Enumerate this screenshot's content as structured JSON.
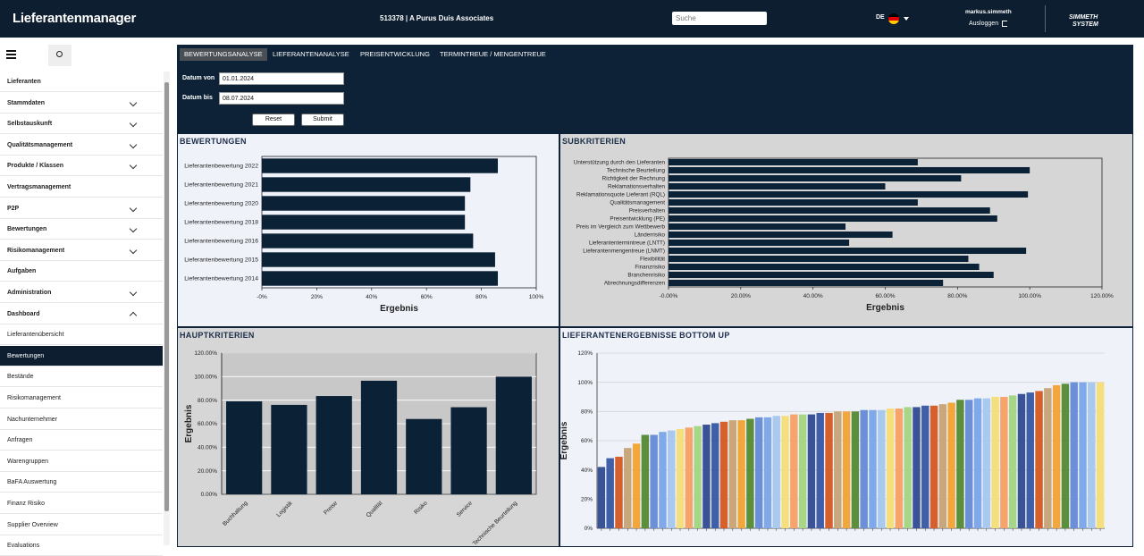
{
  "header": {
    "app_title": "Lieferantenmanager",
    "company": "513378 | A Purus Duis Associates",
    "search_placeholder": "Suche",
    "language": "DE",
    "user": "markus.simmeth",
    "logout": "Ausloggen",
    "logo_line1": "SIMMETH",
    "logo_line2": "SYSTEM"
  },
  "sidebar": {
    "items": [
      {
        "label": "Lieferanten"
      },
      {
        "label": "Stammdaten",
        "chevron": "down"
      },
      {
        "label": "Selbstauskunft",
        "chevron": "down"
      },
      {
        "label": "Qualitätsmanagement",
        "chevron": "down"
      },
      {
        "label": "Produkte / Klassen",
        "chevron": "down"
      },
      {
        "label": "Vertragsmanagement"
      },
      {
        "label": "P2P",
        "chevron": "down"
      },
      {
        "label": "Bewertungen",
        "chevron": "down"
      },
      {
        "label": "Risikomanagement",
        "chevron": "down"
      },
      {
        "label": "Aufgaben"
      },
      {
        "label": "Administration",
        "chevron": "down"
      },
      {
        "label": "Dashboard",
        "chevron": "up"
      }
    ],
    "subitems": [
      "Lieferantenübersicht",
      "Bewertungen",
      "Bestände",
      "Risikomanagement",
      "Nachunternehmer",
      "Anfragen",
      "Warengruppen",
      "BaFA Auswertung",
      "Finanz Risiko",
      "Supplier Overview",
      "Evaluations"
    ],
    "active_subitem": 1
  },
  "tabs": {
    "items": [
      "BEWERTUNGSANALYSE",
      "LIEFERANTENANALYSE",
      "PREISENTWICKLUNG",
      "TERMINTREUE / MENGENTREUE"
    ],
    "active": 0
  },
  "filters": {
    "from_label": "Datum von",
    "from_value": "01.01.2024",
    "to_label": "Datum bis",
    "to_value": "08.07.2024",
    "reset": "Reset",
    "submit": "Submit"
  },
  "chart_data": [
    {
      "type": "barh",
      "title": "BEWERTUNGEN",
      "categories": [
        "Lieferantenbewertung 2022",
        "Lieferantenbewertung 2021",
        "Lieferantenbewertung 2020",
        "Lieferantenbewertung 2018",
        "Lieferantenbewertung 2016",
        "Lieferantenbewertung 2015",
        "Lieferantenbewertung 2014"
      ],
      "values": [
        86,
        76,
        74,
        74,
        77,
        85,
        86
      ],
      "color": "#0b2135",
      "xlim": [
        0,
        100
      ],
      "xticks": [
        {
          "value": 0,
          "label": "-0%"
        },
        {
          "value": 20,
          "label": "20%"
        },
        {
          "value": 40,
          "label": "40%"
        },
        {
          "value": 60,
          "label": "60%"
        },
        {
          "value": 80,
          "label": "80%"
        },
        {
          "value": 100,
          "label": "100%"
        }
      ],
      "xlabel": "Ergebnis",
      "grid": false
    },
    {
      "type": "barh",
      "title": "SUBKRITERIEN",
      "categories": [
        "Unterstützung durch den Lieferanten",
        "Technische Beurteilung",
        "Richtigkeit der Rechnung",
        "Reklamationsverhalten",
        "Reklamationsquote Lieferant (RQL)",
        "Qualitätsmanagement",
        "Preisverhalten",
        "Preisentwicklung (PE)",
        "Preis im Vergleich zum Wettbewerb",
        "Länderrisiko",
        "Lieferantentermintreue (LNTT)",
        "Lieferantenmengentreue (LNMT)",
        "Flexibilität",
        "Finanzrisiko",
        "Branchenrisiko",
        "Abrechnungsdifferenzen"
      ],
      "values": [
        69,
        100,
        81,
        60,
        99.5,
        69,
        89,
        91,
        49,
        62,
        50,
        99,
        83,
        86,
        90,
        76
      ],
      "color": "#0b2135",
      "xlim": [
        0,
        120
      ],
      "xticks": [
        {
          "value": 0,
          "label": "-0.00%"
        },
        {
          "value": 20,
          "label": "20.00%"
        },
        {
          "value": 40,
          "label": "40.00%"
        },
        {
          "value": 60,
          "label": "60.00%"
        },
        {
          "value": 80,
          "label": "80.00%"
        },
        {
          "value": 100,
          "label": "100.00%"
        },
        {
          "value": 120,
          "label": "120.00%"
        }
      ],
      "xlabel": "Ergebnis",
      "grid": false
    },
    {
      "type": "bar",
      "title": "HAUPTKRITERIEN",
      "categories": [
        "Buchhaltung",
        "Logistik",
        "Preise",
        "Qualität",
        "Risiko",
        "Service",
        "Technische Beurteilung"
      ],
      "values": [
        79,
        76,
        83.5,
        96.5,
        64,
        74,
        100
      ],
      "color": "#0b2135",
      "ylim": [
        0,
        120
      ],
      "yticks": [
        {
          "value": 0,
          "label": "0.00%"
        },
        {
          "value": 20,
          "label": "20.00%"
        },
        {
          "value": 40,
          "label": "40.00%"
        },
        {
          "value": 60,
          "label": "60.00%"
        },
        {
          "value": 80,
          "label": "80.00%"
        },
        {
          "value": 100,
          "label": "100.00%"
        },
        {
          "value": 120,
          "label": "120.00%"
        }
      ],
      "ylabel": "Ergebnis",
      "grid": true
    },
    {
      "type": "bar",
      "title": "LIEFERANTENERGEBNISSE BOTTOM UP",
      "values": [
        42,
        48,
        49,
        55,
        58,
        64,
        64,
        66,
        67,
        68,
        69,
        70,
        71,
        72,
        73,
        74,
        74,
        75,
        76,
        76,
        77,
        77,
        78,
        78,
        78,
        79,
        79,
        80,
        80,
        80,
        81,
        81,
        81,
        82,
        82,
        83,
        83,
        84,
        84,
        85,
        86,
        88,
        88,
        89,
        89,
        90,
        90,
        91,
        92,
        93,
        94,
        96,
        98,
        99,
        100,
        100,
        100,
        100
      ],
      "palette": [
        "#3a5396",
        "#3f5fa8",
        "#d6602c",
        "#c8a77c",
        "#f2a73c",
        "#5b8f3c",
        "#6c90d8",
        "#80a9ea",
        "#a9c9ef",
        "#f4df7c",
        "#f6a46b",
        "#a7d786"
      ],
      "ylim": [
        0,
        120
      ],
      "yticks": [
        {
          "value": 0,
          "label": "0%"
        },
        {
          "value": 20,
          "label": "20%"
        },
        {
          "value": 40,
          "label": "40%"
        },
        {
          "value": 60,
          "label": "60%"
        },
        {
          "value": 80,
          "label": "80%"
        },
        {
          "value": 100,
          "label": "100%"
        },
        {
          "value": 120,
          "label": "120%"
        }
      ],
      "ylabel": "Ergebnis",
      "grid": true
    }
  ]
}
